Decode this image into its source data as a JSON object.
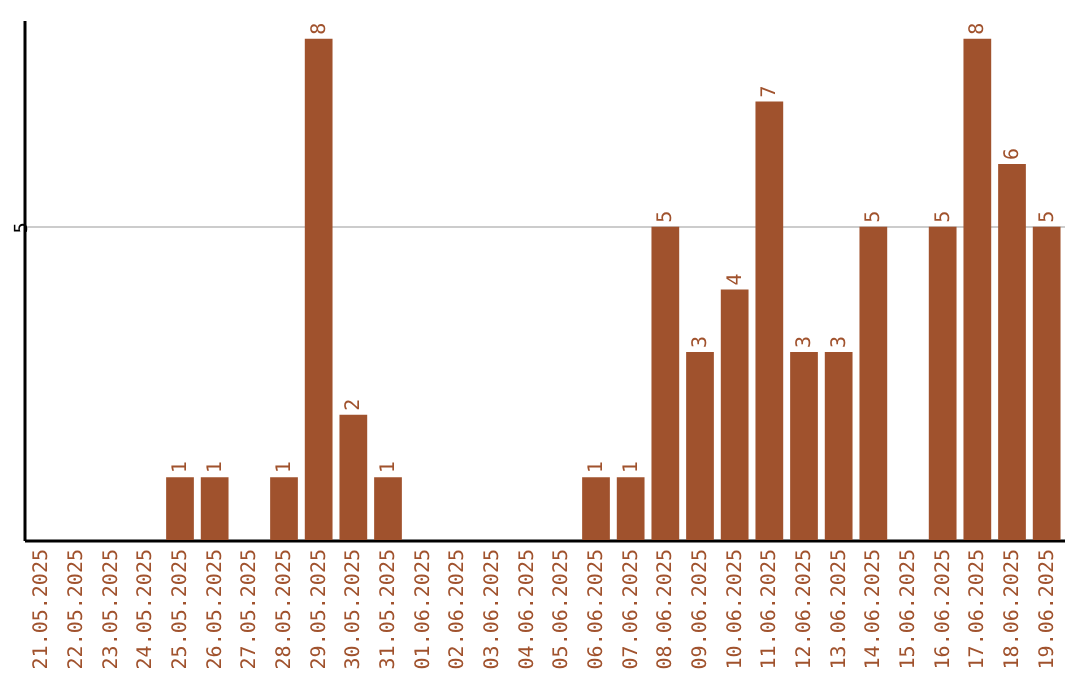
{
  "chart_data": {
    "type": "bar",
    "categories": [
      "21.05.2025",
      "22.05.2025",
      "23.05.2025",
      "24.05.2025",
      "25.05.2025",
      "26.05.2025",
      "27.05.2025",
      "28.05.2025",
      "29.05.2025",
      "30.05.2025",
      "31.05.2025",
      "01.06.2025",
      "02.06.2025",
      "03.06.2025",
      "04.06.2025",
      "05.06.2025",
      "06.06.2025",
      "07.06.2025",
      "08.06.2025",
      "09.06.2025",
      "10.06.2025",
      "11.06.2025",
      "12.06.2025",
      "13.06.2025",
      "14.06.2025",
      "15.06.2025",
      "16.06.2025",
      "17.06.2025",
      "18.06.2025",
      "19.06.2025"
    ],
    "values": [
      0,
      0,
      0,
      0,
      1,
      1,
      0,
      1,
      8,
      2,
      1,
      0,
      0,
      0,
      0,
      0,
      1,
      1,
      5,
      3,
      4,
      7,
      3,
      3,
      5,
      0,
      5,
      8,
      6,
      5
    ],
    "value_labels": [
      null,
      null,
      null,
      null,
      "1",
      "1",
      null,
      "1",
      "8",
      "2",
      "1",
      null,
      null,
      null,
      null,
      null,
      "1",
      "1",
      "5",
      "3",
      "4",
      "7",
      "3",
      "3",
      "5",
      null,
      "5",
      "8",
      "6",
      "5"
    ],
    "color": "#a0522d",
    "ylim": [
      0,
      8.3
    ],
    "yticks": [
      5
    ],
    "grid": "y"
  }
}
